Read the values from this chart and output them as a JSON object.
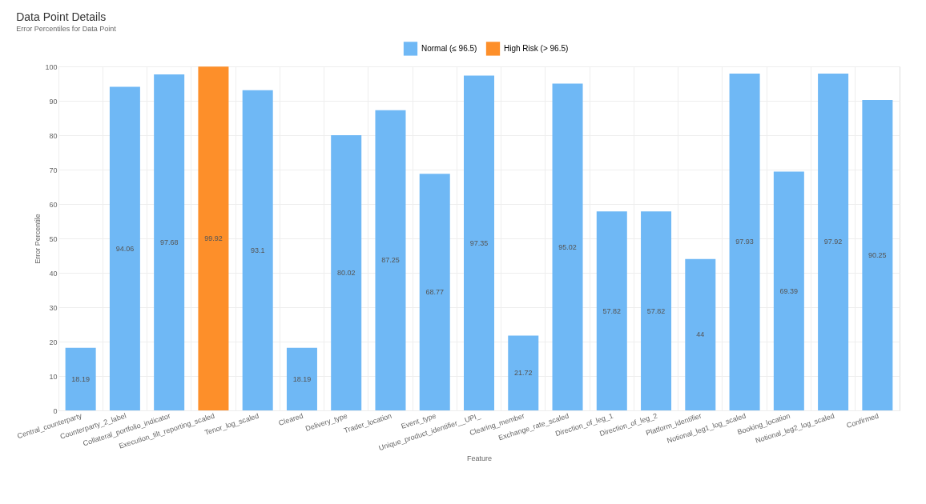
{
  "chart_data": {
    "type": "bar",
    "title": "Data Point Details",
    "subtitle": "Error Percentiles for Data Point",
    "xlabel": "Feature",
    "ylabel": "Error Percentile",
    "categories": [
      "Central_counterparty",
      "Counterparty_2_label",
      "Collateral_portfolio_indicator",
      "Execution_tilt_reporting_scaled",
      "Tenor_log_scaled",
      "Cleared",
      "Delivery_type",
      "Trader_location",
      "Event_type",
      "Unique_product_identifier__UPI_",
      "Clearing_member",
      "Exchange_rate_scaled",
      "Direction_of_leg_1",
      "Direction_of_leg_2",
      "Platform_identifier",
      "Notional_leg1_log_scaled",
      "Booking_location",
      "Notional_leg2_log_scaled",
      "Confirmed"
    ],
    "series": [
      {
        "name": "Normal (≤ 96.5)",
        "color": "#6fb8f5",
        "values": [
          18.19,
          94.06,
          97.68,
          null,
          93.1,
          18.19,
          80.02,
          87.25,
          68.77,
          97.35,
          21.72,
          95.02,
          57.82,
          57.82,
          44,
          97.93,
          69.39,
          97.92,
          90.25
        ]
      },
      {
        "name": "High Risk (> 96.5)",
        "color": "#fd8f2a",
        "values": [
          null,
          null,
          null,
          99.92,
          null,
          null,
          null,
          null,
          null,
          null,
          null,
          null,
          null,
          null,
          null,
          null,
          null,
          null,
          null
        ]
      }
    ],
    "ylim": [
      0,
      100
    ],
    "yticks": [
      0,
      10,
      20,
      30,
      40,
      50,
      60,
      70,
      80,
      90,
      100
    ],
    "grid": true,
    "legend": "top",
    "data_labels": true
  }
}
